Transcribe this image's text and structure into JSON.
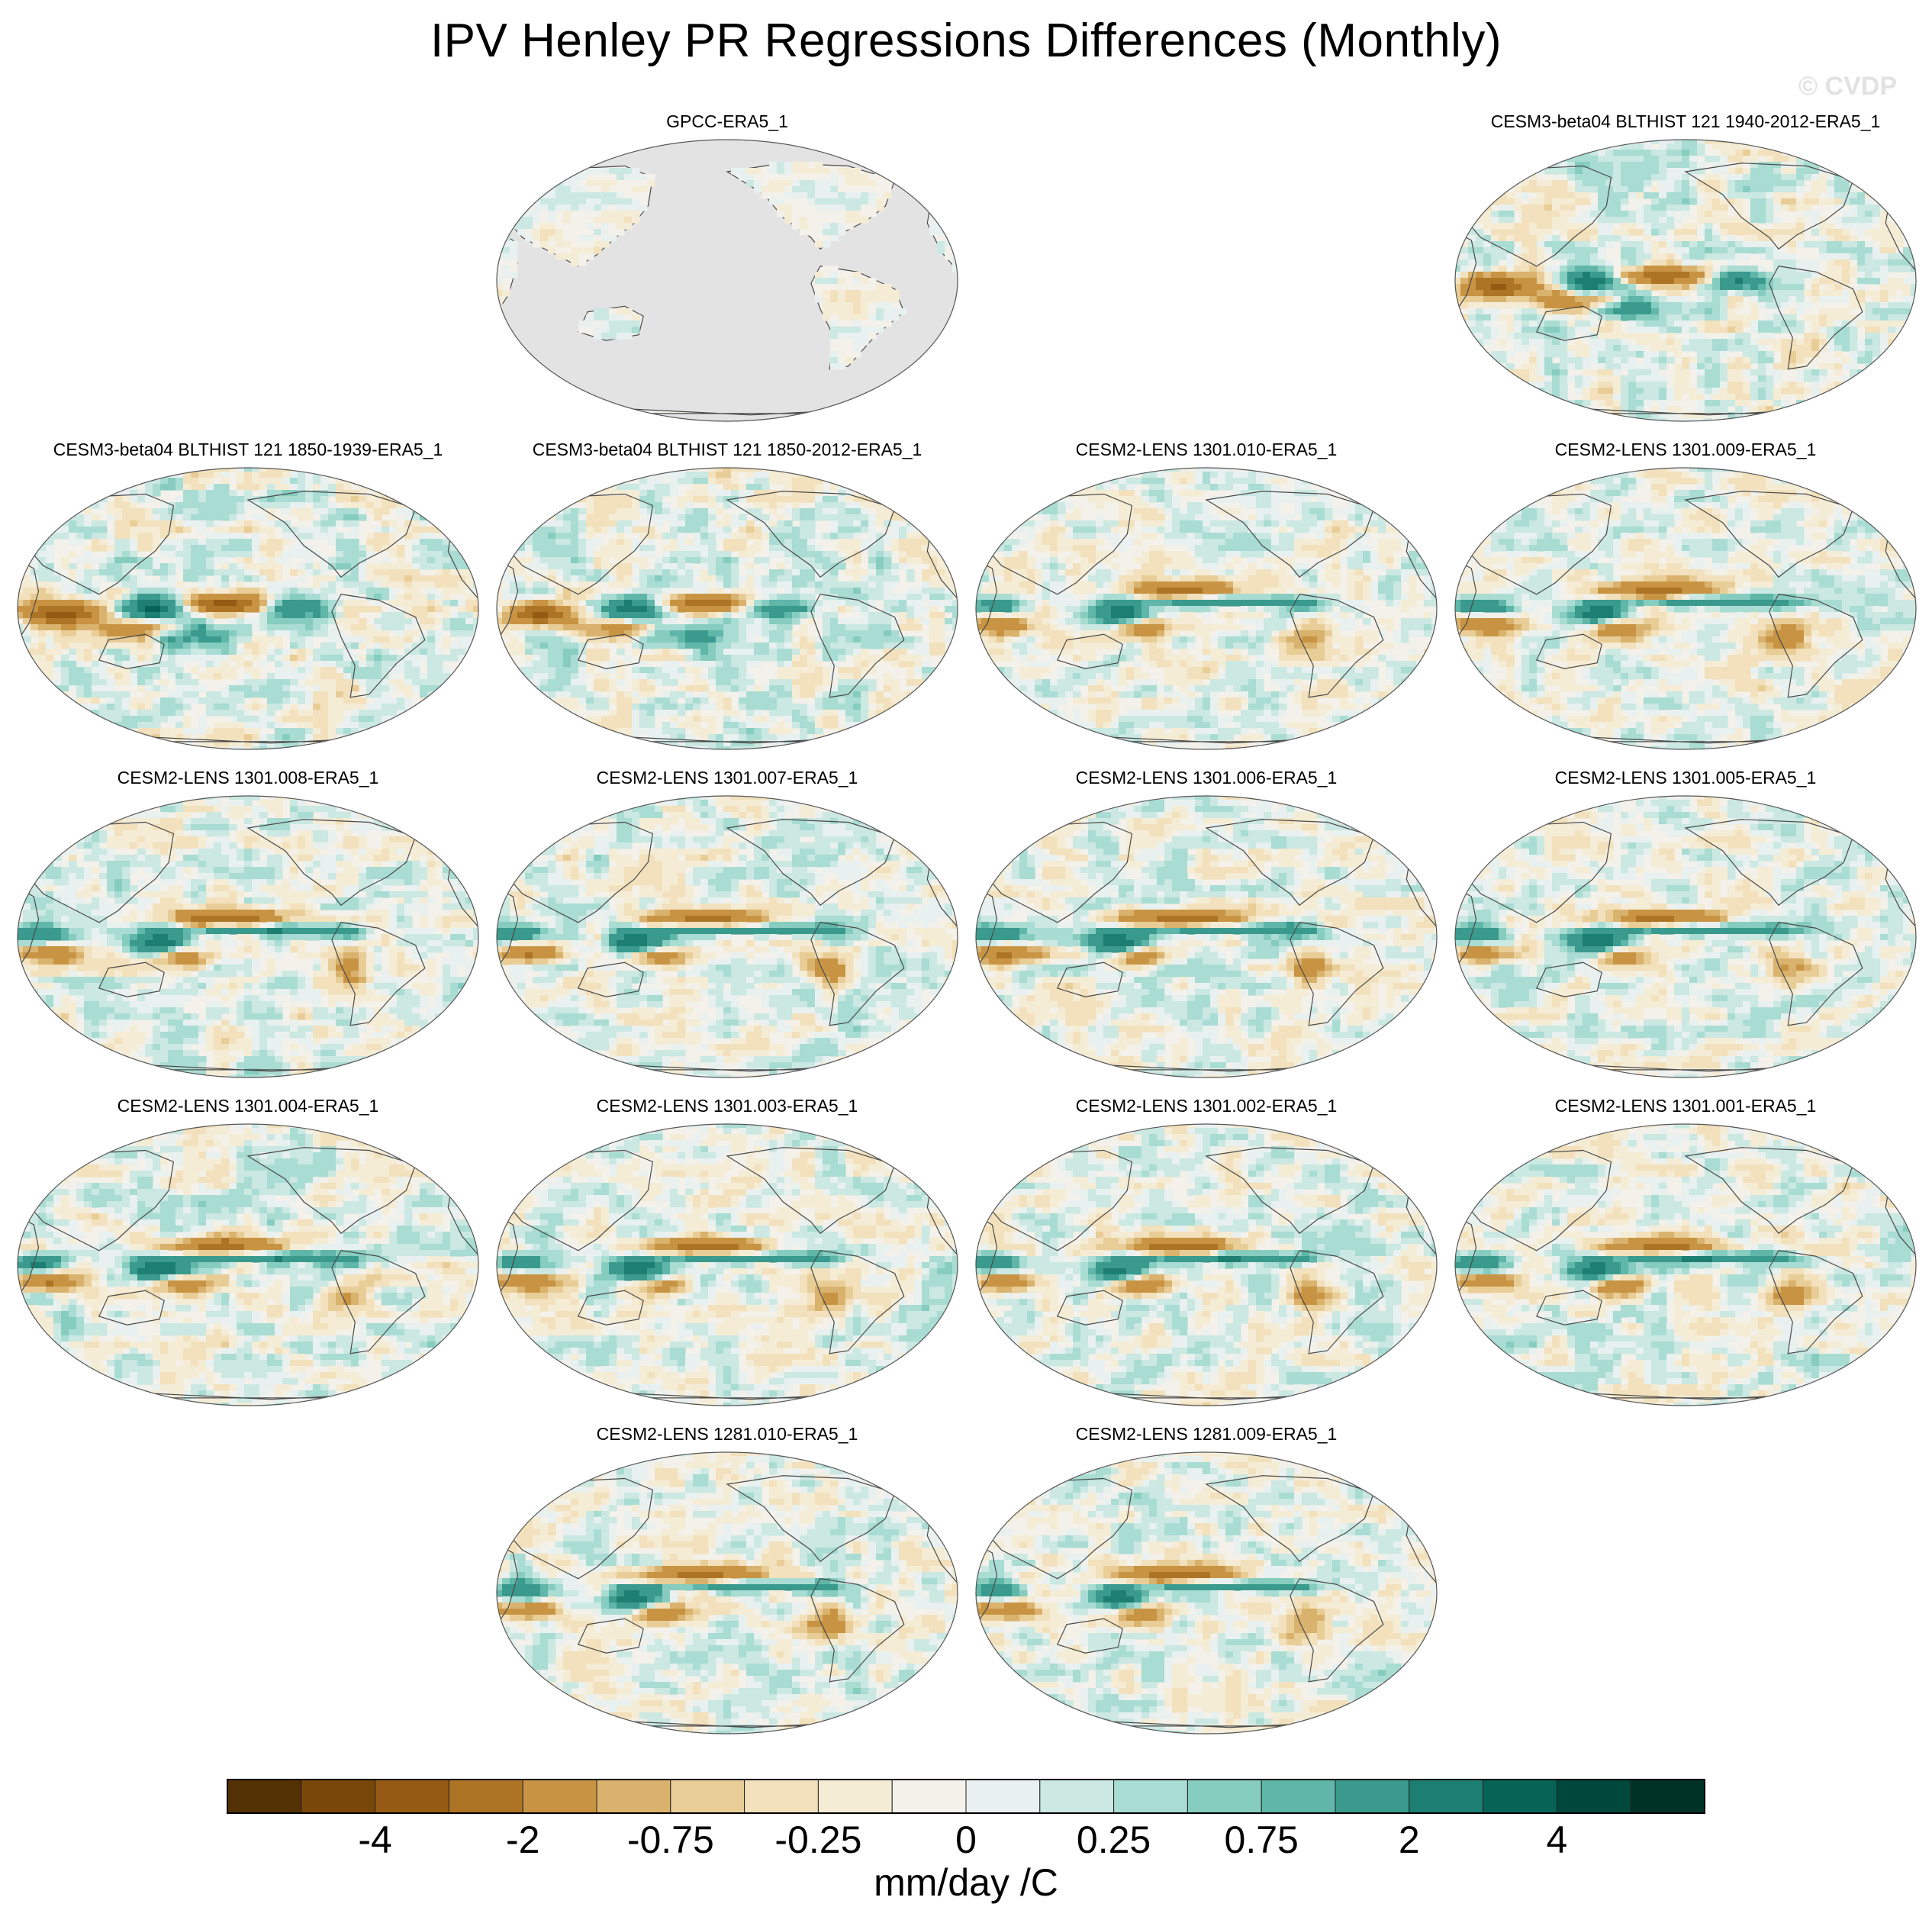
{
  "title": "IPV Henley PR Regressions Differences (Monthly)",
  "watermark": "© CVDP",
  "colors": {
    "levels": [
      "#543005",
      "#7a470b",
      "#955b15",
      "#ad7426",
      "#c89443",
      "#d9b26d",
      "#e9cd97",
      "#f2e1bc",
      "#f5ecd6",
      "#f3f1ea",
      "#e8f1ef",
      "#cbe8e2",
      "#a9dcd3",
      "#86cdc0",
      "#5fb6a9",
      "#3a9a8e",
      "#1d7e72",
      "#086357",
      "#00483c",
      "#003326"
    ],
    "land_outline": "#4a4a4a",
    "missing": "#e3e3e3",
    "map_border": "#555555"
  },
  "chart_data": {
    "type": "heatmap",
    "title": "IPV Henley PR Regressions Differences (Monthly)",
    "variable": "precipitation regression difference",
    "units": "mm/day /C",
    "colorbar": {
      "tick_labels": [
        "-4",
        "-2",
        "-0.75",
        "-0.25",
        "0",
        "0.25",
        "0.75",
        "2",
        "4"
      ],
      "levels": [
        -5,
        -4,
        -3,
        -2,
        -1,
        -0.75,
        -0.5,
        -0.25,
        0,
        0.25,
        0.5,
        0.75,
        1,
        2,
        3,
        4,
        5
      ],
      "n_colors": 20
    },
    "panels": [
      {
        "label": "GPCC-ERA5_1",
        "ocean_missing": true,
        "strength": 0.25,
        "pattern": "gpcc"
      },
      {
        "label": "CESM3-beta04 BLTHIST 121 1940-2012-ERA5_1",
        "ocean_missing": false,
        "strength": 1.0,
        "pattern": "cesm3"
      },
      {
        "label": "CESM3-beta04 BLTHIST 121 1850-1939-ERA5_1",
        "ocean_missing": false,
        "strength": 1.05,
        "pattern": "cesm3"
      },
      {
        "label": "CESM3-beta04 BLTHIST 121 1850-2012-ERA5_1",
        "ocean_missing": false,
        "strength": 1.0,
        "pattern": "cesm3"
      },
      {
        "label": "CESM2-LENS 1301.010-ERA5_1",
        "ocean_missing": false,
        "strength": 0.8,
        "pattern": "cesm2"
      },
      {
        "label": "CESM2-LENS 1301.009-ERA5_1",
        "ocean_missing": false,
        "strength": 0.85,
        "pattern": "cesm2"
      },
      {
        "label": "CESM2-LENS 1301.008-ERA5_1",
        "ocean_missing": false,
        "strength": 0.9,
        "pattern": "cesm2"
      },
      {
        "label": "CESM2-LENS 1301.007-ERA5_1",
        "ocean_missing": false,
        "strength": 0.85,
        "pattern": "cesm2"
      },
      {
        "label": "CESM2-LENS 1301.006-ERA5_1",
        "ocean_missing": false,
        "strength": 0.85,
        "pattern": "cesm2"
      },
      {
        "label": "CESM2-LENS 1301.005-ERA5_1",
        "ocean_missing": false,
        "strength": 0.8,
        "pattern": "cesm2"
      },
      {
        "label": "CESM2-LENS 1301.004-ERA5_1",
        "ocean_missing": false,
        "strength": 0.9,
        "pattern": "cesm2"
      },
      {
        "label": "CESM2-LENS 1301.003-ERA5_1",
        "ocean_missing": false,
        "strength": 0.85,
        "pattern": "cesm2"
      },
      {
        "label": "CESM2-LENS 1301.002-ERA5_1",
        "ocean_missing": false,
        "strength": 0.85,
        "pattern": "cesm2"
      },
      {
        "label": "CESM2-LENS 1301.001-ERA5_1",
        "ocean_missing": false,
        "strength": 0.9,
        "pattern": "cesm2"
      },
      {
        "label": "CESM2-LENS 1281.010-ERA5_1",
        "ocean_missing": false,
        "strength": 0.85,
        "pattern": "cesm2"
      },
      {
        "label": "CESM2-LENS 1281.009-ERA5_1",
        "ocean_missing": false,
        "strength": 0.85,
        "pattern": "cesm2"
      }
    ]
  }
}
